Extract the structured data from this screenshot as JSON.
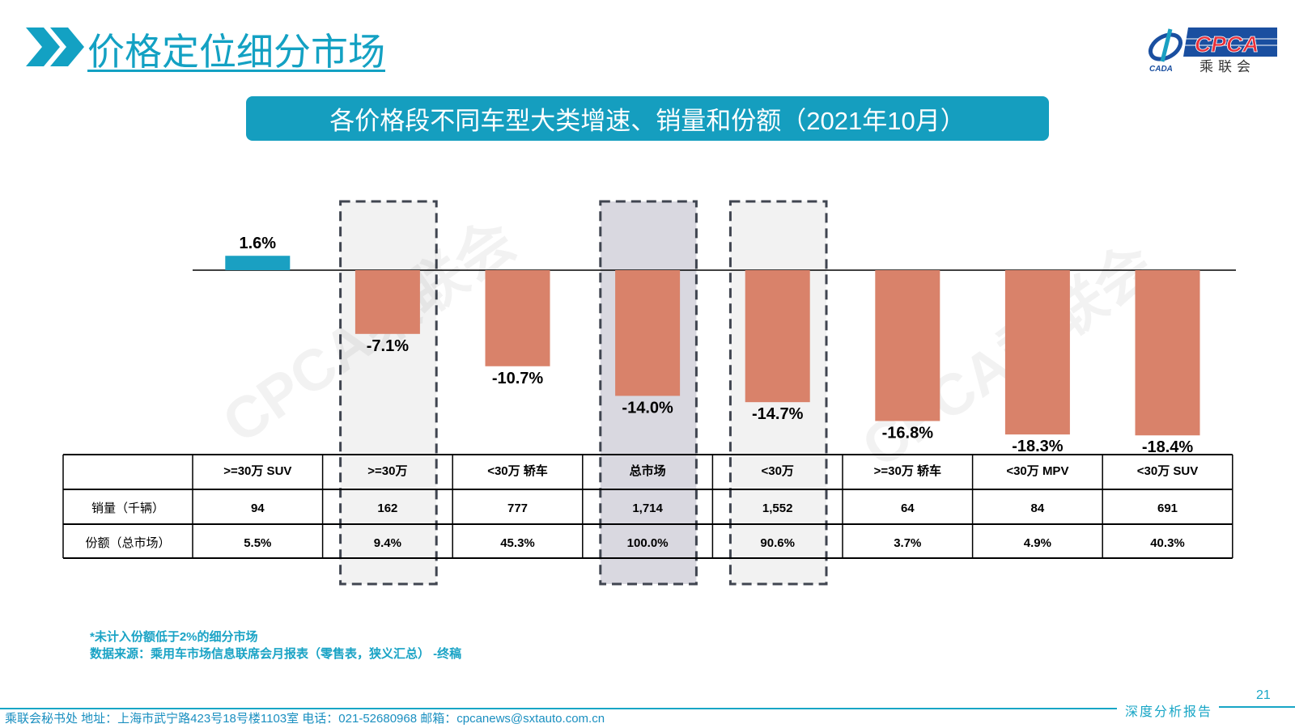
{
  "header": {
    "title": "价格定位细分市场",
    "logo_text": "CPCA",
    "logo_sub": "乘联会",
    "logo_mark": "CADA"
  },
  "banner": {
    "title": "各价格段不同车型大类增速、销量和份额（2021年10月）"
  },
  "watermark": "CPCA乘联会",
  "chart_data": {
    "type": "bar",
    "title": "各价格段不同车型大类增速、销量和份额（2021年10月）",
    "categories": [
      ">=30万 SUV",
      ">=30万",
      "<30万 轿车",
      "总市场",
      "<30万",
      ">=30万 轿车",
      "<30万 MPV",
      "<30万 SUV"
    ],
    "values": [
      1.6,
      -7.1,
      -10.7,
      -14.0,
      -14.7,
      -16.8,
      -18.3,
      -18.4
    ],
    "value_labels": [
      "1.6%",
      "-7.1%",
      "-10.7%",
      "-14.0%",
      "-14.7%",
      "-16.8%",
      "-18.3%",
      "-18.4%"
    ],
    "unit": "%",
    "highlighted": [
      ">=30万",
      "总市场",
      "<30万"
    ],
    "colors": {
      "positive": "#1aa0c2",
      "negative": "#d9826a",
      "highlight_light": "#f2f2f2",
      "highlight_dark": "#d9d8e0"
    },
    "table": {
      "rows": [
        {
          "label": "销量（千辆）",
          "values": [
            "94",
            "162",
            "777",
            "1,714",
            "1,552",
            "64",
            "84",
            "691"
          ]
        },
        {
          "label": "份额（总市场）",
          "values": [
            "5.5%",
            "9.4%",
            "45.3%",
            "100.0%",
            "90.6%",
            "3.7%",
            "4.9%",
            "40.3%"
          ]
        }
      ]
    }
  },
  "notes": {
    "line1": "*未计入份额低于2%的细分市场",
    "line2": "数据来源：乘用车市场信息联席会月报表（零售表，狭义汇总） -终稿"
  },
  "footer": {
    "text": "乘联会秘书处   地址：上海市武宁路423号18号楼1103室  电话：021-52680968   邮箱：cpcanews@sxtauto.com.cn",
    "tag": "深度分析报告",
    "page": "21"
  }
}
